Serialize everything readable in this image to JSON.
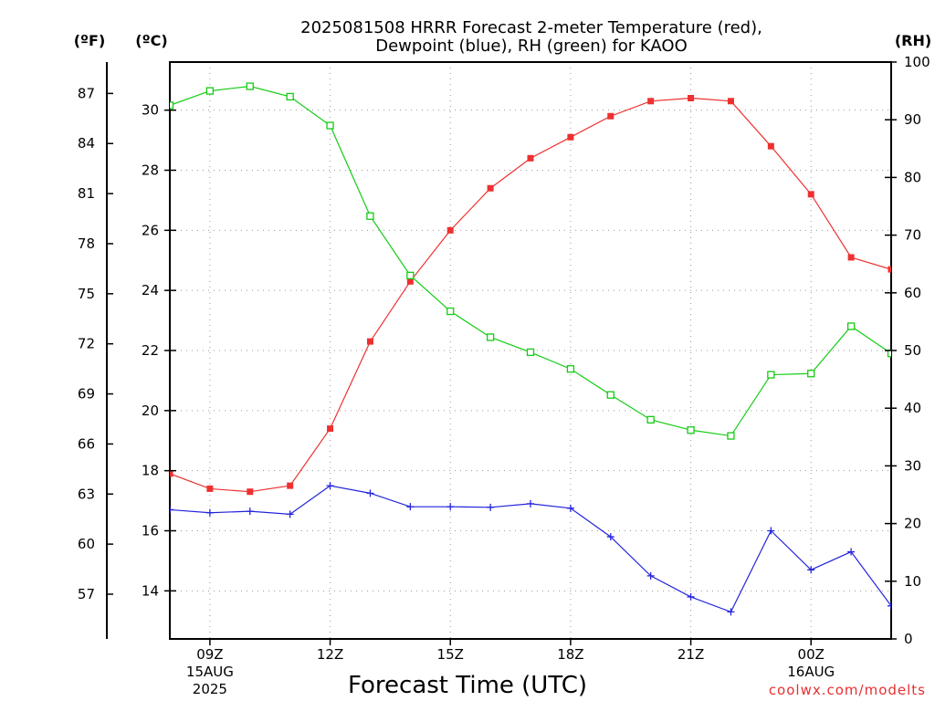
{
  "title": {
    "line1": "2025081508 HRRR Forecast 2-meter Temperature (red),",
    "line2": "Dewpoint (blue), RH (green) for KAOO"
  },
  "units": {
    "f": "(ºF)",
    "c": "(ºC)",
    "rh": "(RH)"
  },
  "xlabel": "Forecast Time (UTC)",
  "credit": "coolwx.com/modelts",
  "colors": {
    "temperature": "#ee3030",
    "dewpoint": "#2424dd",
    "rh": "#14cc14",
    "credit": "#e53030"
  },
  "chart_data": {
    "type": "line",
    "x": [
      "08Z",
      "09Z",
      "10Z",
      "11Z",
      "12Z",
      "13Z",
      "14Z",
      "15Z",
      "16Z",
      "17Z",
      "18Z",
      "19Z",
      "20Z",
      "21Z",
      "22Z",
      "23Z",
      "00Z",
      "01Z",
      "02Z"
    ],
    "xlim_hours": [
      0,
      18
    ],
    "x_ticks": [
      {
        "label": "09Z",
        "hour": 1,
        "sub1": "15AUG",
        "sub2": "2025"
      },
      {
        "label": "12Z",
        "hour": 4,
        "sub1": "",
        "sub2": ""
      },
      {
        "label": "15Z",
        "hour": 7,
        "sub1": "",
        "sub2": ""
      },
      {
        "label": "18Z",
        "hour": 10,
        "sub1": "",
        "sub2": ""
      },
      {
        "label": "21Z",
        "hour": 13,
        "sub1": "",
        "sub2": ""
      },
      {
        "label": "00Z",
        "hour": 16,
        "sub1": "16AUG",
        "sub2": ""
      }
    ],
    "y_celsius": {
      "ylim": [
        12.4,
        31.6
      ],
      "ticks": [
        14,
        16,
        18,
        20,
        22,
        24,
        26,
        28,
        30
      ]
    },
    "y_fahrenheit": {
      "ticks": [
        57,
        60,
        63,
        66,
        69,
        72,
        75,
        78,
        81,
        84,
        87
      ]
    },
    "y_rh": {
      "ylim": [
        0,
        100
      ],
      "ticks": [
        0,
        10,
        20,
        30,
        40,
        50,
        60,
        70,
        80,
        90,
        100
      ]
    },
    "series": [
      {
        "name": "Temperature",
        "axis": "celsius",
        "marker": "filled-square",
        "values": [
          17.9,
          17.4,
          17.3,
          17.5,
          19.4,
          22.3,
          24.3,
          26.0,
          27.4,
          28.4,
          29.1,
          29.8,
          30.3,
          30.4,
          30.3,
          28.8,
          27.2,
          25.1,
          24.7
        ]
      },
      {
        "name": "Dewpoint",
        "axis": "celsius",
        "marker": "plus",
        "values": [
          16.7,
          16.6,
          16.65,
          16.55,
          17.5,
          17.25,
          16.8,
          16.8,
          16.78,
          16.9,
          16.75,
          15.8,
          14.5,
          13.8,
          13.3,
          16.0,
          14.7,
          15.3,
          13.5
        ]
      },
      {
        "name": "RH",
        "axis": "rh",
        "marker": "open-square",
        "values": [
          92.5,
          95.0,
          95.8,
          94.0,
          89.0,
          73.3,
          63.0,
          56.8,
          52.3,
          49.7,
          46.8,
          42.3,
          38.0,
          36.2,
          35.2,
          45.8,
          46.0,
          54.2,
          49.5
        ]
      }
    ]
  }
}
